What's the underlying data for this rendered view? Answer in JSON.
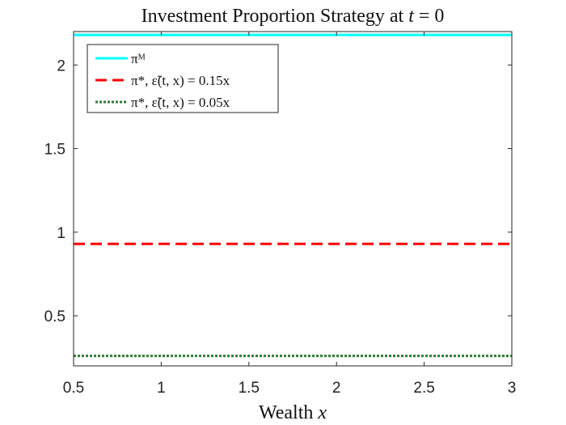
{
  "chart_data": {
    "type": "line",
    "title": "Investment Proportion Strategy at t = 0",
    "title_parts": {
      "prefix": "Investment Proportion Strategy at ",
      "var": "t",
      "suffix": " = 0"
    },
    "xlabel": "Wealth x",
    "xlabel_parts": {
      "prefix": "Wealth ",
      "var": "x"
    },
    "ylabel": "",
    "xlim": [
      0.5,
      3
    ],
    "ylim": [
      0.2,
      2.2
    ],
    "xticks": [
      0.5,
      1,
      1.5,
      2,
      2.5,
      3
    ],
    "xtick_labels": [
      "0.5",
      "1",
      "1.5",
      "2",
      "2.5",
      "3"
    ],
    "yticks": [
      0.5,
      1,
      1.5,
      2
    ],
    "ytick_labels": [
      "0.5",
      "1",
      "1.5",
      "2"
    ],
    "grid": false,
    "legend_position": "top-left",
    "series": [
      {
        "name": "π^M",
        "legend_label": "πᴹ",
        "color": "#00ffff",
        "style": "solid",
        "x": [
          0.5,
          3
        ],
        "y": [
          2.18,
          2.18
        ]
      },
      {
        "name": "π*, ε̃(t,x) = 0.15x",
        "legend_label": "π*, ε̃(t, x) = 0.15x",
        "color": "#ff0000",
        "style": "dashed",
        "x": [
          0.5,
          3
        ],
        "y": [
          0.93,
          0.93
        ]
      },
      {
        "name": "π*, ε̃(t,x) = 0.05x",
        "legend_label": "π*, ε̃(t, x) = 0.05x",
        "color": "#2e7d32",
        "style": "dotted",
        "x": [
          0.5,
          3
        ],
        "y": [
          0.26,
          0.26
        ]
      }
    ]
  }
}
